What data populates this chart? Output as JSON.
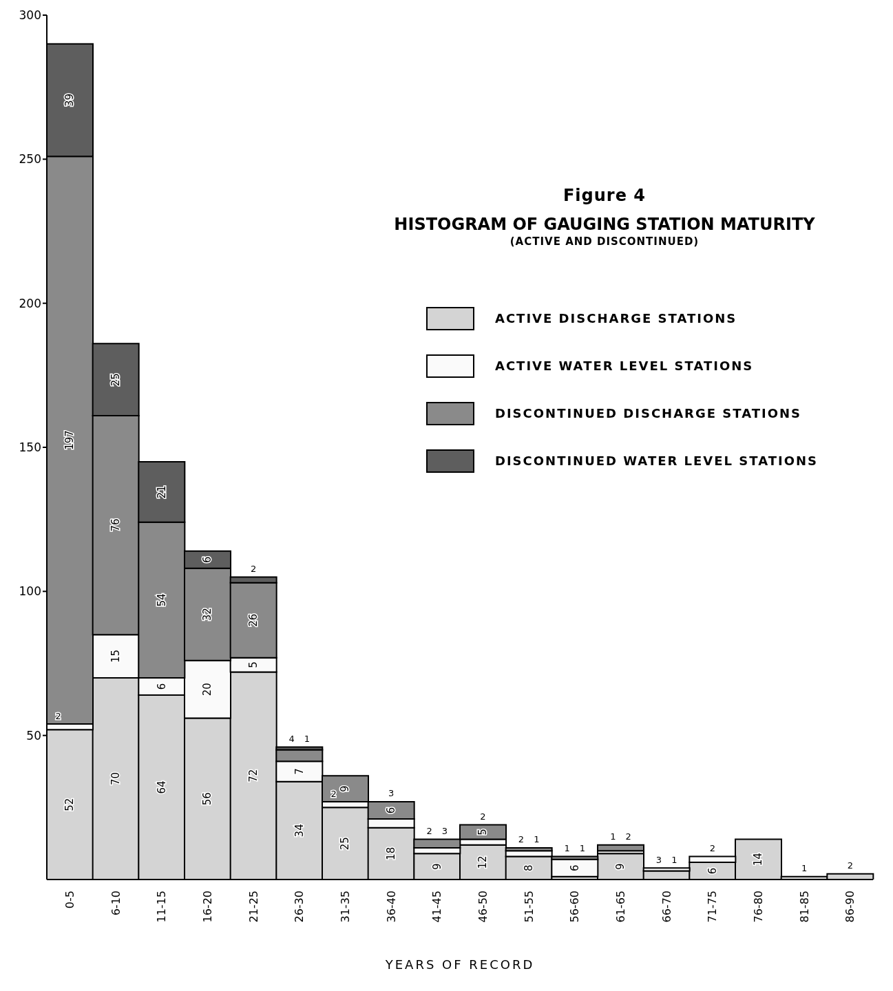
{
  "chart_data": {
    "type": "bar",
    "stacked": true,
    "title": "Figure 4",
    "subtitle": "HISTOGRAM OF GAUGING STATION MATURITY",
    "annotations": [
      "(ACTIVE AND DISCONTINUED)"
    ],
    "xlabel": "YEARS OF RECORD",
    "categories": [
      "0-5",
      "6-10",
      "11-15",
      "16-20",
      "21-25",
      "26-30",
      "31-35",
      "36-40",
      "41-45",
      "46-50",
      "51-55",
      "56-60",
      "61-65",
      "66-70",
      "71-75",
      "76-80",
      "81-85",
      "86-90"
    ],
    "series": [
      {
        "name": "ACTIVE DISCHARGE STATIONS",
        "color": "#d4d4d4",
        "values": [
          52,
          70,
          64,
          56,
          72,
          34,
          25,
          18,
          9,
          12,
          8,
          1,
          9,
          3,
          6,
          14,
          1,
          2
        ]
      },
      {
        "name": "ACTIVE WATER LEVEL STATIONS",
        "color": "#fafafa",
        "values": [
          2,
          15,
          6,
          20,
          5,
          7,
          2,
          3,
          2,
          2,
          2,
          6,
          1,
          1,
          2,
          null,
          null,
          null
        ]
      },
      {
        "name": "DISCONTINUED DISCHARGE STATIONS",
        "color": "#8a8a8a",
        "values": [
          197,
          76,
          54,
          32,
          26,
          4,
          9,
          6,
          3,
          5,
          1,
          1,
          2,
          null,
          null,
          null,
          null,
          null
        ]
      },
      {
        "name": "DISCONTINUED WATER LEVEL STATIONS",
        "color": "#5e5e5e",
        "values": [
          39,
          25,
          21,
          6,
          2,
          1,
          null,
          null,
          null,
          null,
          null,
          null,
          null,
          null,
          null,
          null,
          null,
          null
        ]
      }
    ],
    "ylim": [
      0,
      300
    ],
    "yticks": [
      50,
      100,
      150,
      200,
      250,
      300
    ],
    "grid": false,
    "legend": "top right",
    "data_labels": true
  }
}
